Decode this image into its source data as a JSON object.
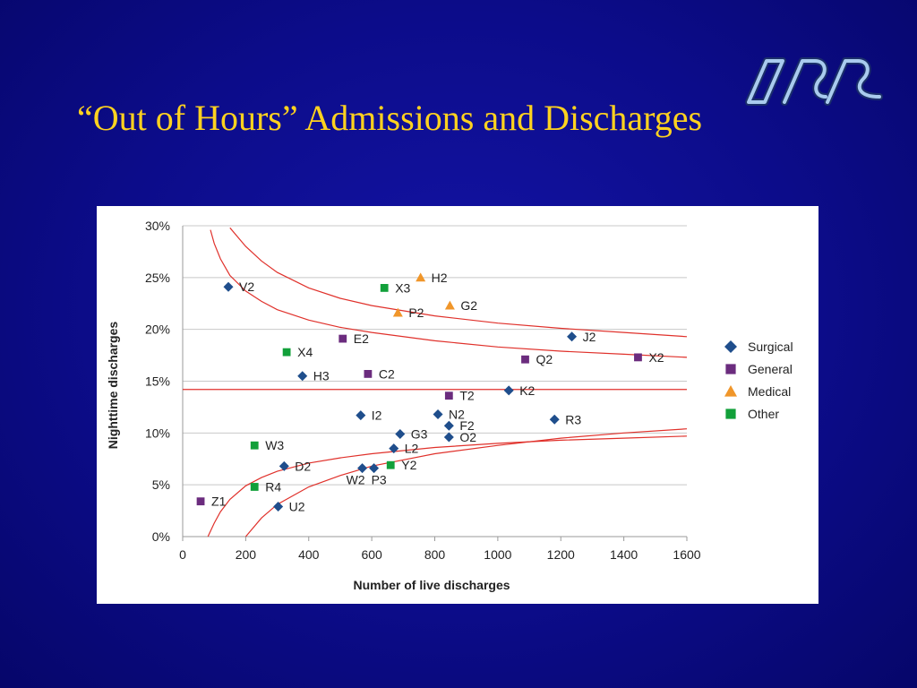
{
  "slide": {
    "title": "“Out of Hours” Admissions and Discharges",
    "logo_text": "JSS",
    "colors": {
      "background": "#0c0c8a",
      "title": "#ffd21f",
      "logo": "#9fc2e8"
    }
  },
  "chart_data": {
    "type": "scatter",
    "title": "",
    "xlabel": "Number of live discharges",
    "ylabel": "Nighttime discharges",
    "xlim": [
      0,
      1600
    ],
    "ylim": [
      0,
      30
    ],
    "x_ticks": [
      "0",
      "200",
      "400",
      "600",
      "800",
      "1000",
      "1200",
      "1400",
      "1600"
    ],
    "y_ticks": [
      "0%",
      "5%",
      "10%",
      "15%",
      "20%",
      "25%",
      "30%"
    ],
    "grid": "horizontal",
    "legend_position": "right",
    "mean_line": 14.2,
    "series": [
      {
        "name": "Surgical",
        "marker": "diamond",
        "color": "#1f4e8c",
        "points": [
          {
            "label": "V2",
            "x": 145,
            "y": 24.1
          },
          {
            "label": "H3",
            "x": 380,
            "y": 15.5
          },
          {
            "label": "I2",
            "x": 565,
            "y": 11.7
          },
          {
            "label": "N2",
            "x": 810,
            "y": 11.8
          },
          {
            "label": "F2",
            "x": 845,
            "y": 10.7
          },
          {
            "label": "G3",
            "x": 690,
            "y": 9.9
          },
          {
            "label": "O2",
            "x": 845,
            "y": 9.6
          },
          {
            "label": "L2",
            "x": 670,
            "y": 8.5
          },
          {
            "label": "D2",
            "x": 322,
            "y": 6.8
          },
          {
            "label": "W2",
            "x": 570,
            "y": 6.6
          },
          {
            "label": "P3",
            "x": 607,
            "y": 6.6
          },
          {
            "label": "U2",
            "x": 303,
            "y": 2.9
          },
          {
            "label": "K2",
            "x": 1035,
            "y": 14.1
          },
          {
            "label": "R3",
            "x": 1180,
            "y": 11.3
          },
          {
            "label": "J2",
            "x": 1235,
            "y": 19.3
          }
        ]
      },
      {
        "name": "General",
        "marker": "square",
        "color": "#6b2c7e",
        "points": [
          {
            "label": "E2",
            "x": 508,
            "y": 19.1
          },
          {
            "label": "C2",
            "x": 588,
            "y": 15.7
          },
          {
            "label": "T2",
            "x": 845,
            "y": 13.6
          },
          {
            "label": "Q2",
            "x": 1087,
            "y": 17.1
          },
          {
            "label": "X2",
            "x": 1445,
            "y": 17.3
          },
          {
            "label": "Z1",
            "x": 57,
            "y": 3.4
          }
        ]
      },
      {
        "name": "Medical",
        "marker": "triangle",
        "color": "#f0962a",
        "points": [
          {
            "label": "H2",
            "x": 755,
            "y": 25.0
          },
          {
            "label": "P2",
            "x": 683,
            "y": 21.6
          },
          {
            "label": "G2",
            "x": 848,
            "y": 22.3
          }
        ]
      },
      {
        "name": "Other",
        "marker": "square",
        "color": "#12a03a",
        "points": [
          {
            "label": "X3",
            "x": 640,
            "y": 24.0
          },
          {
            "label": "X4",
            "x": 330,
            "y": 17.8
          },
          {
            "label": "W3",
            "x": 228,
            "y": 8.8
          },
          {
            "label": "R4",
            "x": 228,
            "y": 4.8
          },
          {
            "label": "Y2",
            "x": 660,
            "y": 6.9
          }
        ]
      }
    ],
    "control_limits": [
      {
        "kind": "outer-upper",
        "x": [
          88,
          100,
          120,
          150,
          200,
          250,
          300,
          400,
          500,
          600,
          800,
          1000,
          1200,
          1400,
          1600
        ],
        "y": [
          29.6,
          28.3,
          26.8,
          25.2,
          23.7,
          22.7,
          21.9,
          20.9,
          20.2,
          19.7,
          18.9,
          18.3,
          17.9,
          17.6,
          17.3
        ]
      },
      {
        "kind": "inner-upper",
        "x": [
          150,
          200,
          250,
          300,
          400,
          500,
          600,
          800,
          1000,
          1200,
          1400,
          1600
        ],
        "y": [
          29.8,
          28.0,
          26.6,
          25.5,
          24.0,
          23.0,
          22.3,
          21.3,
          20.6,
          20.1,
          19.7,
          19.3
        ]
      },
      {
        "kind": "inner-lower",
        "x": [
          200,
          250,
          300,
          400,
          500,
          600,
          800,
          1000,
          1200,
          1400,
          1600
        ],
        "y": [
          0,
          1.8,
          3.1,
          4.8,
          5.9,
          6.8,
          8.0,
          8.8,
          9.5,
          10.0,
          10.4
        ]
      },
      {
        "kind": "outer-lower",
        "x": [
          80,
          100,
          120,
          150,
          200,
          250,
          300,
          400,
          500,
          600,
          800,
          1000,
          1200,
          1400,
          1600
        ],
        "y": [
          0,
          1.3,
          2.4,
          3.6,
          4.9,
          5.7,
          6.3,
          7.1,
          7.6,
          8.0,
          8.6,
          9.0,
          9.3,
          9.5,
          9.7
        ]
      }
    ]
  }
}
